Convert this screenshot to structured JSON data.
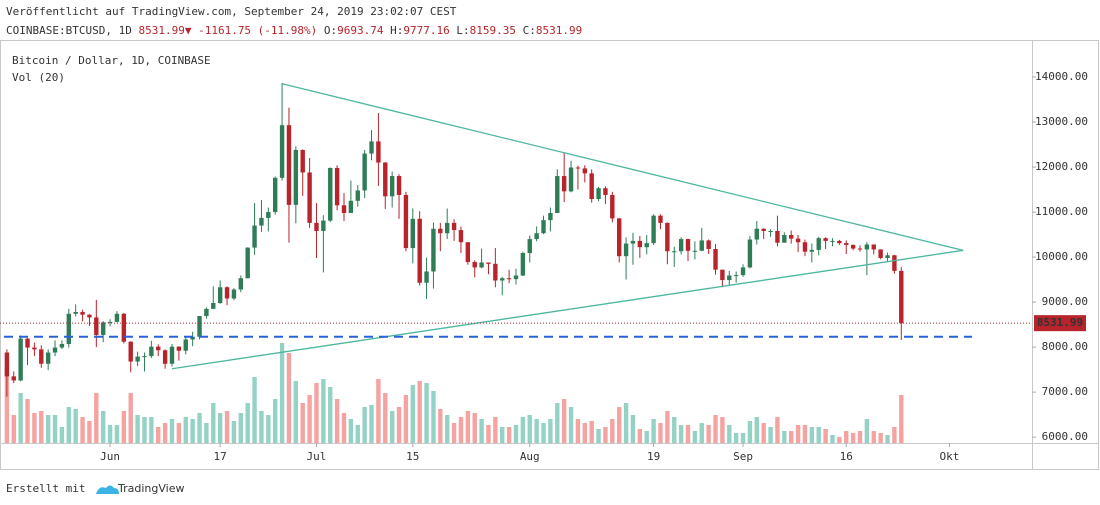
{
  "header": {
    "published": "Veröffentlicht auf TradingView.com, September 24, 2019 23:02:07 CEST",
    "symbol": "COINBASE:BTCUSD, 1D",
    "arrow": "▼",
    "change_label": "-1161.75 (-11.98%)",
    "ohlc_labels": [
      "O:",
      "H:",
      "L:",
      "C:"
    ]
  },
  "footer": {
    "made_with": "Erstellt mit",
    "brand": "TradingView"
  },
  "chart_data": {
    "type": "candlestick",
    "title": "Bitcoin / Dollar, 1D, COINBASE",
    "volume_label": "Vol (20)",
    "up_color": "#2e7d57",
    "down_color": "#b8232c",
    "volume_up_color": "#95d2c6",
    "volume_down_color": "#f4a3a0",
    "xlim": [
      "2019-05-16",
      "2019-10-13"
    ],
    "xticks": [
      {
        "value": "2019-06-01",
        "label": "Jun"
      },
      {
        "value": "2019-06-17",
        "label": "17"
      },
      {
        "value": "2019-07-01",
        "label": "Jul"
      },
      {
        "value": "2019-07-15",
        "label": "15"
      },
      {
        "value": "2019-08-01",
        "label": "Aug"
      },
      {
        "value": "2019-08-19",
        "label": "19"
      },
      {
        "value": "2019-09-01",
        "label": "Sep"
      },
      {
        "value": "2019-09-16",
        "label": "16"
      },
      {
        "value": "2019-10-01",
        "label": "Okt"
      }
    ],
    "ylim": [
      5870,
      15000
    ],
    "yticks": [
      {
        "value": 6000,
        "label": "6000.00"
      },
      {
        "value": 7000,
        "label": "7000.00"
      },
      {
        "value": 8000,
        "label": "8000.00"
      },
      {
        "value": 9000,
        "label": "9000.00"
      },
      {
        "value": 10000,
        "label": "10000.00"
      },
      {
        "value": 11000,
        "label": "11000.00"
      },
      {
        "value": 12000,
        "label": "12000.00"
      },
      {
        "value": 13000,
        "label": "13000.00"
      },
      {
        "value": 14000,
        "label": "14000.00"
      }
    ],
    "trendline_color": "#4db6a0",
    "trendlines": [
      {
        "points": [
          [
            "2019-06-26",
            13850
          ],
          [
            "2019-10-03",
            10150
          ]
        ]
      },
      {
        "points": [
          [
            "2019-06-10",
            7520
          ],
          [
            "2019-10-03",
            10150
          ]
        ]
      }
    ],
    "hline": {
      "y": 8230,
      "color": "#2962d6"
    },
    "x": [
      "2019-05-17",
      "2019-05-18",
      "2019-05-19",
      "2019-05-20",
      "2019-05-21",
      "2019-05-22",
      "2019-05-23",
      "2019-05-24",
      "2019-05-25",
      "2019-05-26",
      "2019-05-27",
      "2019-05-28",
      "2019-05-29",
      "2019-05-30",
      "2019-05-31",
      "2019-06-01",
      "2019-06-02",
      "2019-06-03",
      "2019-06-04",
      "2019-06-05",
      "2019-06-06",
      "2019-06-07",
      "2019-06-08",
      "2019-06-09",
      "2019-06-10",
      "2019-06-11",
      "2019-06-12",
      "2019-06-13",
      "2019-06-14",
      "2019-06-15",
      "2019-06-16",
      "2019-06-17",
      "2019-06-18",
      "2019-06-19",
      "2019-06-20",
      "2019-06-21",
      "2019-06-22",
      "2019-06-23",
      "2019-06-24",
      "2019-06-25",
      "2019-06-26",
      "2019-06-27",
      "2019-06-28",
      "2019-06-29",
      "2019-06-30",
      "2019-07-01",
      "2019-07-02",
      "2019-07-03",
      "2019-07-04",
      "2019-07-05",
      "2019-07-06",
      "2019-07-07",
      "2019-07-08",
      "2019-07-09",
      "2019-07-10",
      "2019-07-11",
      "2019-07-12",
      "2019-07-13",
      "2019-07-14",
      "2019-07-15",
      "2019-07-16",
      "2019-07-17",
      "2019-07-18",
      "2019-07-19",
      "2019-07-20",
      "2019-07-21",
      "2019-07-22",
      "2019-07-23",
      "2019-07-24",
      "2019-07-25",
      "2019-07-26",
      "2019-07-27",
      "2019-07-28",
      "2019-07-29",
      "2019-07-30",
      "2019-07-31",
      "2019-08-01",
      "2019-08-02",
      "2019-08-03",
      "2019-08-04",
      "2019-08-05",
      "2019-08-06",
      "2019-08-07",
      "2019-08-08",
      "2019-08-09",
      "2019-08-10",
      "2019-08-11",
      "2019-08-12",
      "2019-08-13",
      "2019-08-14",
      "2019-08-15",
      "2019-08-16",
      "2019-08-17",
      "2019-08-18",
      "2019-08-19",
      "2019-08-20",
      "2019-08-21",
      "2019-08-22",
      "2019-08-23",
      "2019-08-24",
      "2019-08-25",
      "2019-08-26",
      "2019-08-27",
      "2019-08-28",
      "2019-08-29",
      "2019-08-30",
      "2019-08-31",
      "2019-09-01",
      "2019-09-02",
      "2019-09-03",
      "2019-09-04",
      "2019-09-05",
      "2019-09-06",
      "2019-09-07",
      "2019-09-08",
      "2019-09-09",
      "2019-09-10",
      "2019-09-11",
      "2019-09-12",
      "2019-09-13",
      "2019-09-14",
      "2019-09-15",
      "2019-09-16",
      "2019-09-17",
      "2019-09-18",
      "2019-09-19",
      "2019-09-20",
      "2019-09-21",
      "2019-09-22",
      "2019-09-23",
      "2019-09-24"
    ],
    "open": [
      7880,
      7350,
      7260,
      8190,
      7990,
      7950,
      7630,
      7880,
      7990,
      8070,
      8740,
      8780,
      8720,
      8660,
      8270,
      8550,
      8560,
      8740,
      8120,
      7680,
      7790,
      7800,
      8010,
      7930,
      7630,
      8010,
      7920,
      8170,
      8230,
      8690,
      8850,
      8980,
      9330,
      9080,
      9280,
      9530,
      10210,
      10700,
      10870,
      11000,
      11760,
      12930,
      11160,
      12380,
      11880,
      10760,
      10580,
      10810,
      11980,
      11150,
      10980,
      11250,
      11480,
      12300,
      12570,
      12100,
      11350,
      11800,
      11380,
      10200,
      10850,
      9430,
      9680,
      10630,
      10530,
      10760,
      10600,
      10330,
      9890,
      9770,
      9880,
      9850,
      9480,
      9530,
      9510,
      9590,
      10090,
      10400,
      10530,
      10820,
      10980,
      11800,
      11460,
      11990,
      11970,
      11860,
      11290,
      11530,
      11380,
      10860,
      10020,
      10300,
      10360,
      10220,
      10310,
      10920,
      10760,
      10130,
      10130,
      10400,
      10140,
      10140,
      10370,
      10180,
      9720,
      9490,
      9590,
      9600,
      9770,
      10390,
      10630,
      10580,
      10580,
      10320,
      10490,
      10410,
      10330,
      10120,
      10160,
      10420,
      10360,
      10360,
      10310,
      10270,
      10190,
      10170,
      10280,
      10170,
      9980,
      10040,
      9693.74
    ],
    "high": [
      7950,
      7460,
      8260,
      8200,
      8100,
      8040,
      7950,
      8150,
      8150,
      8850,
      8950,
      8830,
      8730,
      9050,
      8580,
      8620,
      8800,
      8760,
      8130,
      7900,
      7880,
      8140,
      8060,
      7950,
      8070,
      8020,
      8250,
      8340,
      8690,
      8880,
      9350,
      9480,
      9350,
      9310,
      9590,
      10220,
      11200,
      11270,
      11100,
      11790,
      13870,
      13320,
      12460,
      12390,
      12200,
      11200,
      10930,
      11990,
      12040,
      11420,
      11700,
      11600,
      12380,
      12820,
      13200,
      12110,
      11900,
      11840,
      11450,
      11080,
      11020,
      9990,
      10770,
      10760,
      11080,
      10840,
      10680,
      10330,
      9930,
      10190,
      9880,
      10200,
      9560,
      9720,
      9740,
      10120,
      10480,
      10680,
      10920,
      11100,
      11950,
      12320,
      12140,
      12030,
      12040,
      11950,
      11560,
      11570,
      11450,
      10870,
      10440,
      10540,
      10470,
      10490,
      10950,
      10950,
      10770,
      10230,
      10440,
      10410,
      10350,
      10650,
      10390,
      10290,
      9720,
      9690,
      9680,
      9840,
      10470,
      10800,
      10640,
      10620,
      10920,
      10550,
      10590,
      10490,
      10390,
      10300,
      10450,
      10440,
      10420,
      10380,
      10370,
      10280,
      10260,
      10330,
      10280,
      10170,
      10100,
      10050,
      9777.16
    ],
    "low": [
      6900,
      7200,
      7240,
      7600,
      7800,
      7540,
      7490,
      7800,
      7960,
      7990,
      8680,
      8570,
      8470,
      8000,
      8110,
      8460,
      8550,
      8080,
      7440,
      7580,
      7460,
      7760,
      7800,
      7520,
      7570,
      7700,
      7840,
      8020,
      8170,
      8630,
      8850,
      8960,
      8930,
      9040,
      9220,
      9530,
      10050,
      10560,
      10570,
      10940,
      11700,
      10320,
      10750,
      11360,
      10650,
      9980,
      9660,
      10780,
      11040,
      10800,
      10980,
      11120,
      11310,
      12150,
      11580,
      11070,
      11100,
      10850,
      10130,
      9860,
      9370,
      9070,
      9300,
      10130,
      10400,
      10360,
      10090,
      9830,
      9550,
      9750,
      9620,
      9330,
      9150,
      9420,
      9390,
      9580,
      9880,
      10350,
      10510,
      10570,
      10980,
      11220,
      11440,
      11500,
      11660,
      11210,
      11240,
      11180,
      10770,
      9880,
      9500,
      9830,
      9980,
      10060,
      10270,
      10620,
      9840,
      9780,
      10060,
      9910,
      9950,
      10130,
      10070,
      9610,
      9330,
      9370,
      9430,
      9560,
      9750,
      10280,
      10400,
      10450,
      10240,
      10320,
      10300,
      10110,
      10020,
      9880,
      10040,
      10180,
      10240,
      10270,
      10070,
      10150,
      10120,
      9600,
      10060,
      9950,
      9900,
      9630,
      8159.35
    ],
    "close": [
      7350,
      7260,
      8190,
      7990,
      7950,
      7630,
      7880,
      7990,
      8070,
      8740,
      8780,
      8720,
      8660,
      8270,
      8550,
      8560,
      8740,
      8120,
      7680,
      7790,
      7800,
      8010,
      7930,
      7630,
      8010,
      7920,
      8170,
      8230,
      8690,
      8850,
      8980,
      9330,
      9080,
      9280,
      9530,
      10210,
      10700,
      10870,
      11000,
      11760,
      12930,
      11160,
      12380,
      11880,
      10760,
      10580,
      10810,
      11980,
      11150,
      10980,
      11250,
      11480,
      12300,
      12570,
      12100,
      11350,
      11800,
      11380,
      10200,
      10850,
      9430,
      9680,
      10630,
      10530,
      10760,
      10600,
      10330,
      9890,
      9770,
      9880,
      9850,
      9480,
      9530,
      9510,
      9590,
      10090,
      10400,
      10530,
      10820,
      10980,
      11800,
      11460,
      11990,
      11970,
      11860,
      11290,
      11530,
      11380,
      10860,
      10020,
      10300,
      10360,
      10220,
      10310,
      10920,
      10760,
      10130,
      10130,
      10400,
      10140,
      10140,
      10370,
      10180,
      9720,
      9490,
      9590,
      9600,
      9770,
      10390,
      10630,
      10580,
      10580,
      10320,
      10490,
      10410,
      10330,
      10120,
      10160,
      10420,
      10360,
      10360,
      10310,
      10270,
      10190,
      10170,
      10280,
      10170,
      9980,
      10040,
      9693.74,
      8531.99
    ],
    "volume": [
      38000,
      14000,
      25000,
      22000,
      15000,
      16000,
      14000,
      14000,
      8000,
      18000,
      17000,
      13000,
      11000,
      25000,
      16000,
      9000,
      9000,
      16000,
      25000,
      14000,
      13000,
      13000,
      8000,
      10000,
      12000,
      10000,
      13000,
      12000,
      15000,
      10000,
      20000,
      15000,
      16000,
      11000,
      15000,
      20000,
      33000,
      16000,
      14000,
      22000,
      50000,
      45000,
      31000,
      20000,
      24000,
      30000,
      32000,
      28000,
      22000,
      15000,
      12000,
      9000,
      18000,
      19000,
      32000,
      25000,
      16000,
      18000,
      24000,
      29000,
      31000,
      30000,
      26000,
      17000,
      14000,
      10000,
      13000,
      16000,
      15000,
      12000,
      9000,
      13000,
      8000,
      8000,
      9000,
      13000,
      14000,
      12000,
      10000,
      12000,
      20000,
      22000,
      18000,
      12000,
      10000,
      11000,
      7000,
      8000,
      12000,
      18000,
      20000,
      14000,
      7000,
      6000,
      12000,
      10000,
      16000,
      13000,
      9000,
      9000,
      6000,
      10000,
      9000,
      14000,
      13000,
      9000,
      5000,
      5000,
      11000,
      13000,
      10000,
      8000,
      13000,
      6000,
      6000,
      9000,
      9000,
      8000,
      8000,
      7000,
      4000,
      3000,
      6000,
      5000,
      6000,
      12000,
      6000,
      5000,
      4000,
      8000,
      24000
    ]
  }
}
